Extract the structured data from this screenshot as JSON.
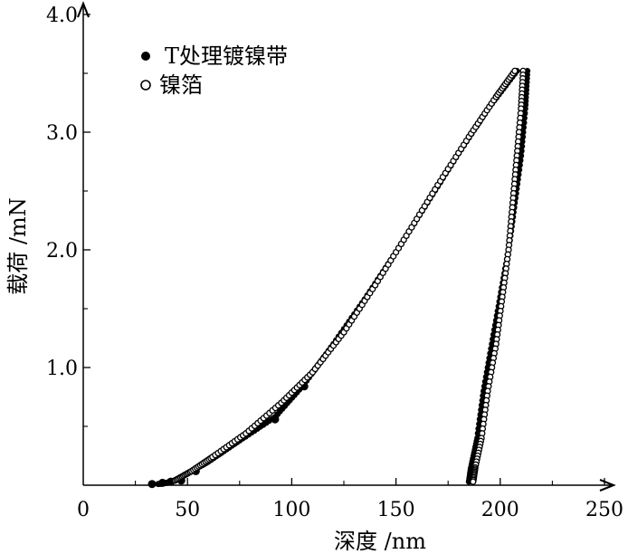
{
  "chart_data": {
    "type": "scatter",
    "title": "",
    "xlabel": "深度 /nm",
    "ylabel": "载荷 /mN",
    "xlim": [
      0,
      250
    ],
    "ylim": [
      0,
      4.0
    ],
    "x_ticks": [
      {
        "value": 0,
        "label": "0"
      },
      {
        "value": 50,
        "label": "50"
      },
      {
        "value": 100,
        "label": "100"
      },
      {
        "value": 150,
        "label": "150"
      },
      {
        "value": 200,
        "label": "200"
      },
      {
        "value": 250,
        "label": "250"
      }
    ],
    "y_ticks": [
      {
        "value": 1.0,
        "label": "1.0"
      },
      {
        "value": 2.0,
        "label": "2.0"
      },
      {
        "value": 3.0,
        "label": "3.0"
      },
      {
        "value": 4.0,
        "label": "4.0"
      }
    ],
    "grid": false,
    "legend_position": "top-left",
    "series": [
      {
        "name": "T处理镀镍带",
        "marker": "filled-circle",
        "color": "#000000",
        "loading": [
          {
            "x": 36,
            "y": 0.01
          },
          {
            "x": 40,
            "y": 0.02
          },
          {
            "x": 44,
            "y": 0.04
          },
          {
            "x": 50,
            "y": 0.1
          },
          {
            "x": 60,
            "y": 0.2
          },
          {
            "x": 75,
            "y": 0.38
          },
          {
            "x": 92,
            "y": 0.58
          },
          {
            "x": 106,
            "y": 0.86
          },
          {
            "x": 120,
            "y": 1.2
          },
          {
            "x": 135,
            "y": 1.58
          },
          {
            "x": 150,
            "y": 1.98
          },
          {
            "x": 165,
            "y": 2.4
          },
          {
            "x": 180,
            "y": 2.82
          },
          {
            "x": 195,
            "y": 3.22
          },
          {
            "x": 208,
            "y": 3.52
          }
        ],
        "unloading": [
          {
            "x": 213,
            "y": 3.52
          },
          {
            "x": 212,
            "y": 3.2
          },
          {
            "x": 210,
            "y": 2.8
          },
          {
            "x": 207,
            "y": 2.4
          },
          {
            "x": 204,
            "y": 2.0
          },
          {
            "x": 200,
            "y": 1.6
          },
          {
            "x": 196,
            "y": 1.2
          },
          {
            "x": 192,
            "y": 0.8
          },
          {
            "x": 189,
            "y": 0.4
          },
          {
            "x": 186,
            "y": 0.15
          },
          {
            "x": 185,
            "y": 0.03
          }
        ]
      },
      {
        "name": "镍箔",
        "marker": "open-circle",
        "color": "#000000",
        "loading": [
          {
            "x": 44,
            "y": 0.04
          },
          {
            "x": 52,
            "y": 0.12
          },
          {
            "x": 62,
            "y": 0.24
          },
          {
            "x": 78,
            "y": 0.44
          },
          {
            "x": 95,
            "y": 0.7
          },
          {
            "x": 110,
            "y": 0.96
          },
          {
            "x": 125,
            "y": 1.3
          },
          {
            "x": 140,
            "y": 1.7
          },
          {
            "x": 155,
            "y": 2.12
          },
          {
            "x": 170,
            "y": 2.55
          },
          {
            "x": 185,
            "y": 2.96
          },
          {
            "x": 198,
            "y": 3.3
          },
          {
            "x": 207,
            "y": 3.52
          }
        ],
        "unloading": [
          {
            "x": 211,
            "y": 3.52
          },
          {
            "x": 210,
            "y": 3.2
          },
          {
            "x": 208,
            "y": 2.8
          },
          {
            "x": 206,
            "y": 2.4
          },
          {
            "x": 204,
            "y": 2.0
          },
          {
            "x": 201,
            "y": 1.6
          },
          {
            "x": 198,
            "y": 1.2
          },
          {
            "x": 194,
            "y": 0.8
          },
          {
            "x": 191,
            "y": 0.4
          },
          {
            "x": 188,
            "y": 0.15
          },
          {
            "x": 187,
            "y": 0.03
          }
        ]
      }
    ]
  }
}
